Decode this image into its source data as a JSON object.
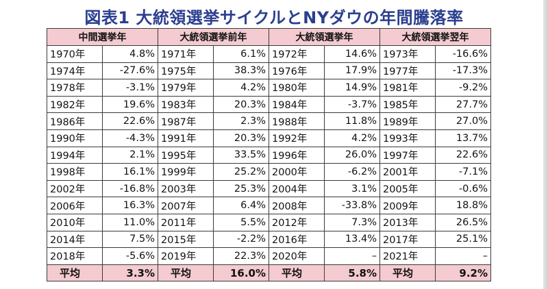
{
  "title": "図表1 大統領選挙サイクルとNYダウの年間騰落率",
  "headers": [
    "中間選挙年",
    "大統領選挙前年",
    "大統領選挙年",
    "大統領選挙翌年"
  ],
  "rows": [
    [
      [
        "1970年",
        "4.8%"
      ],
      [
        "1971年",
        "6.1%"
      ],
      [
        "1972年",
        "14.6%"
      ],
      [
        "1973年",
        "-16.6%"
      ]
    ],
    [
      [
        "1974年",
        "-27.6%"
      ],
      [
        "1975年",
        "38.3%"
      ],
      [
        "1976年",
        "17.9%"
      ],
      [
        "1977年",
        "-17.3%"
      ]
    ],
    [
      [
        "1978年",
        "-3.1%"
      ],
      [
        "1979年",
        "4.2%"
      ],
      [
        "1980年",
        "14.9%"
      ],
      [
        "1981年",
        "-9.2%"
      ]
    ],
    [
      [
        "1982年",
        "19.6%"
      ],
      [
        "1983年",
        "20.3%"
      ],
      [
        "1984年",
        "-3.7%"
      ],
      [
        "1985年",
        "27.7%"
      ]
    ],
    [
      [
        "1986年",
        "22.6%"
      ],
      [
        "1987年",
        "2.3%"
      ],
      [
        "1988年",
        "11.8%"
      ],
      [
        "1989年",
        "27.0%"
      ]
    ],
    [
      [
        "1990年",
        "-4.3%"
      ],
      [
        "1991年",
        "20.3%"
      ],
      [
        "1992年",
        "4.2%"
      ],
      [
        "1993年",
        "13.7%"
      ]
    ],
    [
      [
        "1994年",
        "2.1%"
      ],
      [
        "1995年",
        "33.5%"
      ],
      [
        "1996年",
        "26.0%"
      ],
      [
        "1997年",
        "22.6%"
      ]
    ],
    [
      [
        "1998年",
        "16.1%"
      ],
      [
        "1999年",
        "25.2%"
      ],
      [
        "2000年",
        "-6.2%"
      ],
      [
        "2001年",
        "-7.1%"
      ]
    ],
    [
      [
        "2002年",
        "-16.8%"
      ],
      [
        "2003年",
        "25.3%"
      ],
      [
        "2004年",
        "3.1%"
      ],
      [
        "2005年",
        "-0.6%"
      ]
    ],
    [
      [
        "2006年",
        "16.3%"
      ],
      [
        "2007年",
        "6.4%"
      ],
      [
        "2008年",
        "-33.8%"
      ],
      [
        "2009年",
        "18.8%"
      ]
    ],
    [
      [
        "2010年",
        "11.0%"
      ],
      [
        "2011年",
        "5.5%"
      ],
      [
        "2012年",
        "7.3%"
      ],
      [
        "2013年",
        "26.5%"
      ]
    ],
    [
      [
        "2014年",
        "7.5%"
      ],
      [
        "2015年",
        "-2.2%"
      ],
      [
        "2016年",
        "13.4%"
      ],
      [
        "2017年",
        "25.1%"
      ]
    ],
    [
      [
        "2018年",
        "-5.6%"
      ],
      [
        "2019年",
        "22.3%"
      ],
      [
        "2020年",
        "–"
      ],
      [
        "2021年",
        "–"
      ]
    ]
  ],
  "average": {
    "label": "平均",
    "values": [
      "3.3%",
      "16.0%",
      "5.8%",
      "9.2%"
    ]
  }
}
